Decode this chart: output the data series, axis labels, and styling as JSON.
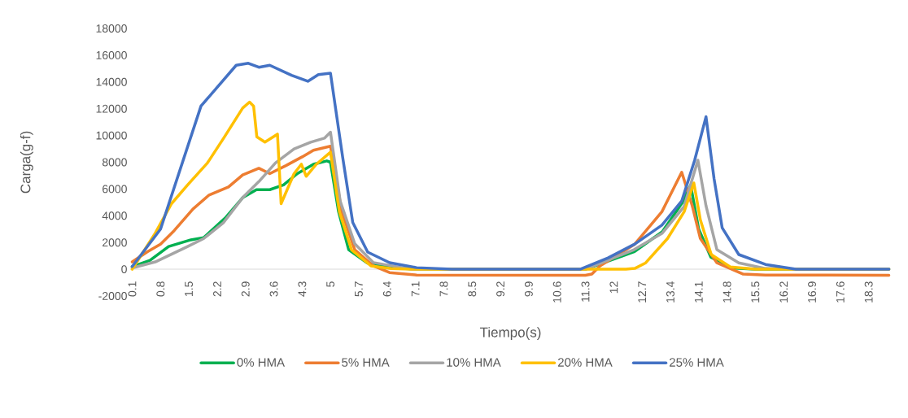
{
  "chart_data": {
    "type": "line",
    "xlabel": "Tiempo(s)",
    "ylabel": "Carga(g-f)",
    "xlim": [
      0.05,
      18.85
    ],
    "ylim": [
      -2000,
      18000
    ],
    "xticks": [
      0.1,
      0.8,
      1.5,
      2.2,
      2.9,
      3.6,
      4.3,
      5,
      5.7,
      6.4,
      7.1,
      7.8,
      8.5,
      9.2,
      9.9,
      10.6,
      11.3,
      12,
      12.7,
      13.4,
      14.1,
      14.8,
      15.5,
      16.2,
      16.9,
      17.6,
      18.3
    ],
    "yticks": [
      -2000,
      0,
      2000,
      4000,
      6000,
      8000,
      10000,
      12000,
      14000,
      16000,
      18000
    ],
    "legend": "bottom",
    "marker": "none",
    "line_style": "solid",
    "series": [
      {
        "name": "0% HMA",
        "color": "#00b050",
        "x": [
          0.1,
          0.54,
          1.0,
          1.55,
          1.87,
          2.42,
          2.83,
          3.17,
          3.5,
          3.84,
          4.18,
          4.58,
          4.91,
          5.0,
          5.2,
          5.45,
          5.9,
          6.5,
          7.2,
          11.3,
          12.5,
          13.2,
          13.7,
          13.9,
          14.1,
          14.4,
          14.9,
          15.5,
          18.8
        ],
        "values": [
          200,
          670,
          1700,
          2200,
          2370,
          3900,
          5350,
          5950,
          5950,
          6300,
          7150,
          7850,
          8100,
          8000,
          4300,
          1460,
          480,
          100,
          0,
          0,
          1300,
          2800,
          5000,
          6300,
          3000,
          900,
          100,
          0,
          0
        ]
      },
      {
        "name": "5% HMA",
        "color": "#ed7d31",
        "x": [
          0.1,
          0.47,
          0.8,
          1.14,
          1.6,
          2.0,
          2.48,
          2.83,
          3.23,
          3.5,
          3.9,
          4.3,
          4.58,
          5.0,
          5.28,
          5.6,
          6.06,
          6.46,
          7.13,
          11.3,
          11.46,
          11.66,
          12.52,
          13.19,
          13.68,
          13.94,
          14.14,
          14.55,
          15.2,
          15.75,
          18.8
        ],
        "values": [
          550,
          1300,
          1880,
          2900,
          4500,
          5550,
          6150,
          7050,
          7550,
          7150,
          7750,
          8400,
          8900,
          9200,
          4300,
          1460,
          250,
          -250,
          -430,
          -450,
          -360,
          250,
          1880,
          4300,
          7250,
          4750,
          2300,
          480,
          -360,
          -430,
          -450
        ]
      },
      {
        "name": "10% HMA",
        "color": "#a5a5a5",
        "x": [
          0.1,
          0.67,
          1.47,
          1.87,
          2.36,
          2.83,
          3.23,
          3.64,
          4.1,
          4.51,
          4.85,
          5.0,
          5.24,
          5.6,
          6.06,
          7.0,
          11.3,
          12.5,
          13.2,
          13.74,
          14.08,
          14.28,
          14.55,
          15.09,
          15.75,
          16.5,
          18.8
        ],
        "values": [
          100,
          550,
          1700,
          2300,
          3500,
          5350,
          6550,
          7950,
          9000,
          9500,
          9800,
          10250,
          5100,
          1900,
          500,
          0,
          0,
          1460,
          2700,
          4700,
          8150,
          4750,
          1460,
          480,
          60,
          0,
          0
        ]
      },
      {
        "name": "20% HMA",
        "color": "#ffc000",
        "x": [
          0.1,
          0.67,
          1.07,
          1.47,
          1.96,
          2.36,
          2.83,
          3.0,
          3.1,
          3.18,
          3.38,
          3.69,
          3.78,
          4.1,
          4.28,
          4.4,
          4.65,
          5.0,
          5.22,
          5.52,
          6.0,
          6.5,
          7.0,
          12.3,
          12.52,
          12.79,
          13.33,
          13.74,
          13.98,
          14.14,
          14.41,
          14.88,
          15.5,
          18.8
        ],
        "values": [
          0,
          2700,
          4900,
          6300,
          7950,
          9800,
          12050,
          12500,
          12200,
          9900,
          9500,
          10100,
          4900,
          7150,
          7850,
          6950,
          7850,
          8750,
          4300,
          1460,
          250,
          50,
          0,
          0,
          60,
          480,
          2300,
          4300,
          6450,
          3700,
          1100,
          180,
          0,
          0
        ]
      },
      {
        "name": "25% HMA",
        "color": "#4472c4",
        "x": [
          0.1,
          0.8,
          1.8,
          2.67,
          2.97,
          3.23,
          3.5,
          4.04,
          4.44,
          4.7,
          5.0,
          5.3,
          5.55,
          5.92,
          6.46,
          7.13,
          8.0,
          11.17,
          11.86,
          12.52,
          13.19,
          13.68,
          14.0,
          14.28,
          14.48,
          14.68,
          15.09,
          15.75,
          16.5,
          18.8
        ],
        "values": [
          200,
          3000,
          12200,
          15250,
          15400,
          15100,
          15250,
          14500,
          14050,
          14550,
          14650,
          8400,
          3500,
          1280,
          490,
          120,
          0,
          0,
          850,
          1880,
          3300,
          5100,
          8150,
          11400,
          6750,
          3100,
          1100,
          360,
          0,
          0
        ]
      }
    ]
  }
}
